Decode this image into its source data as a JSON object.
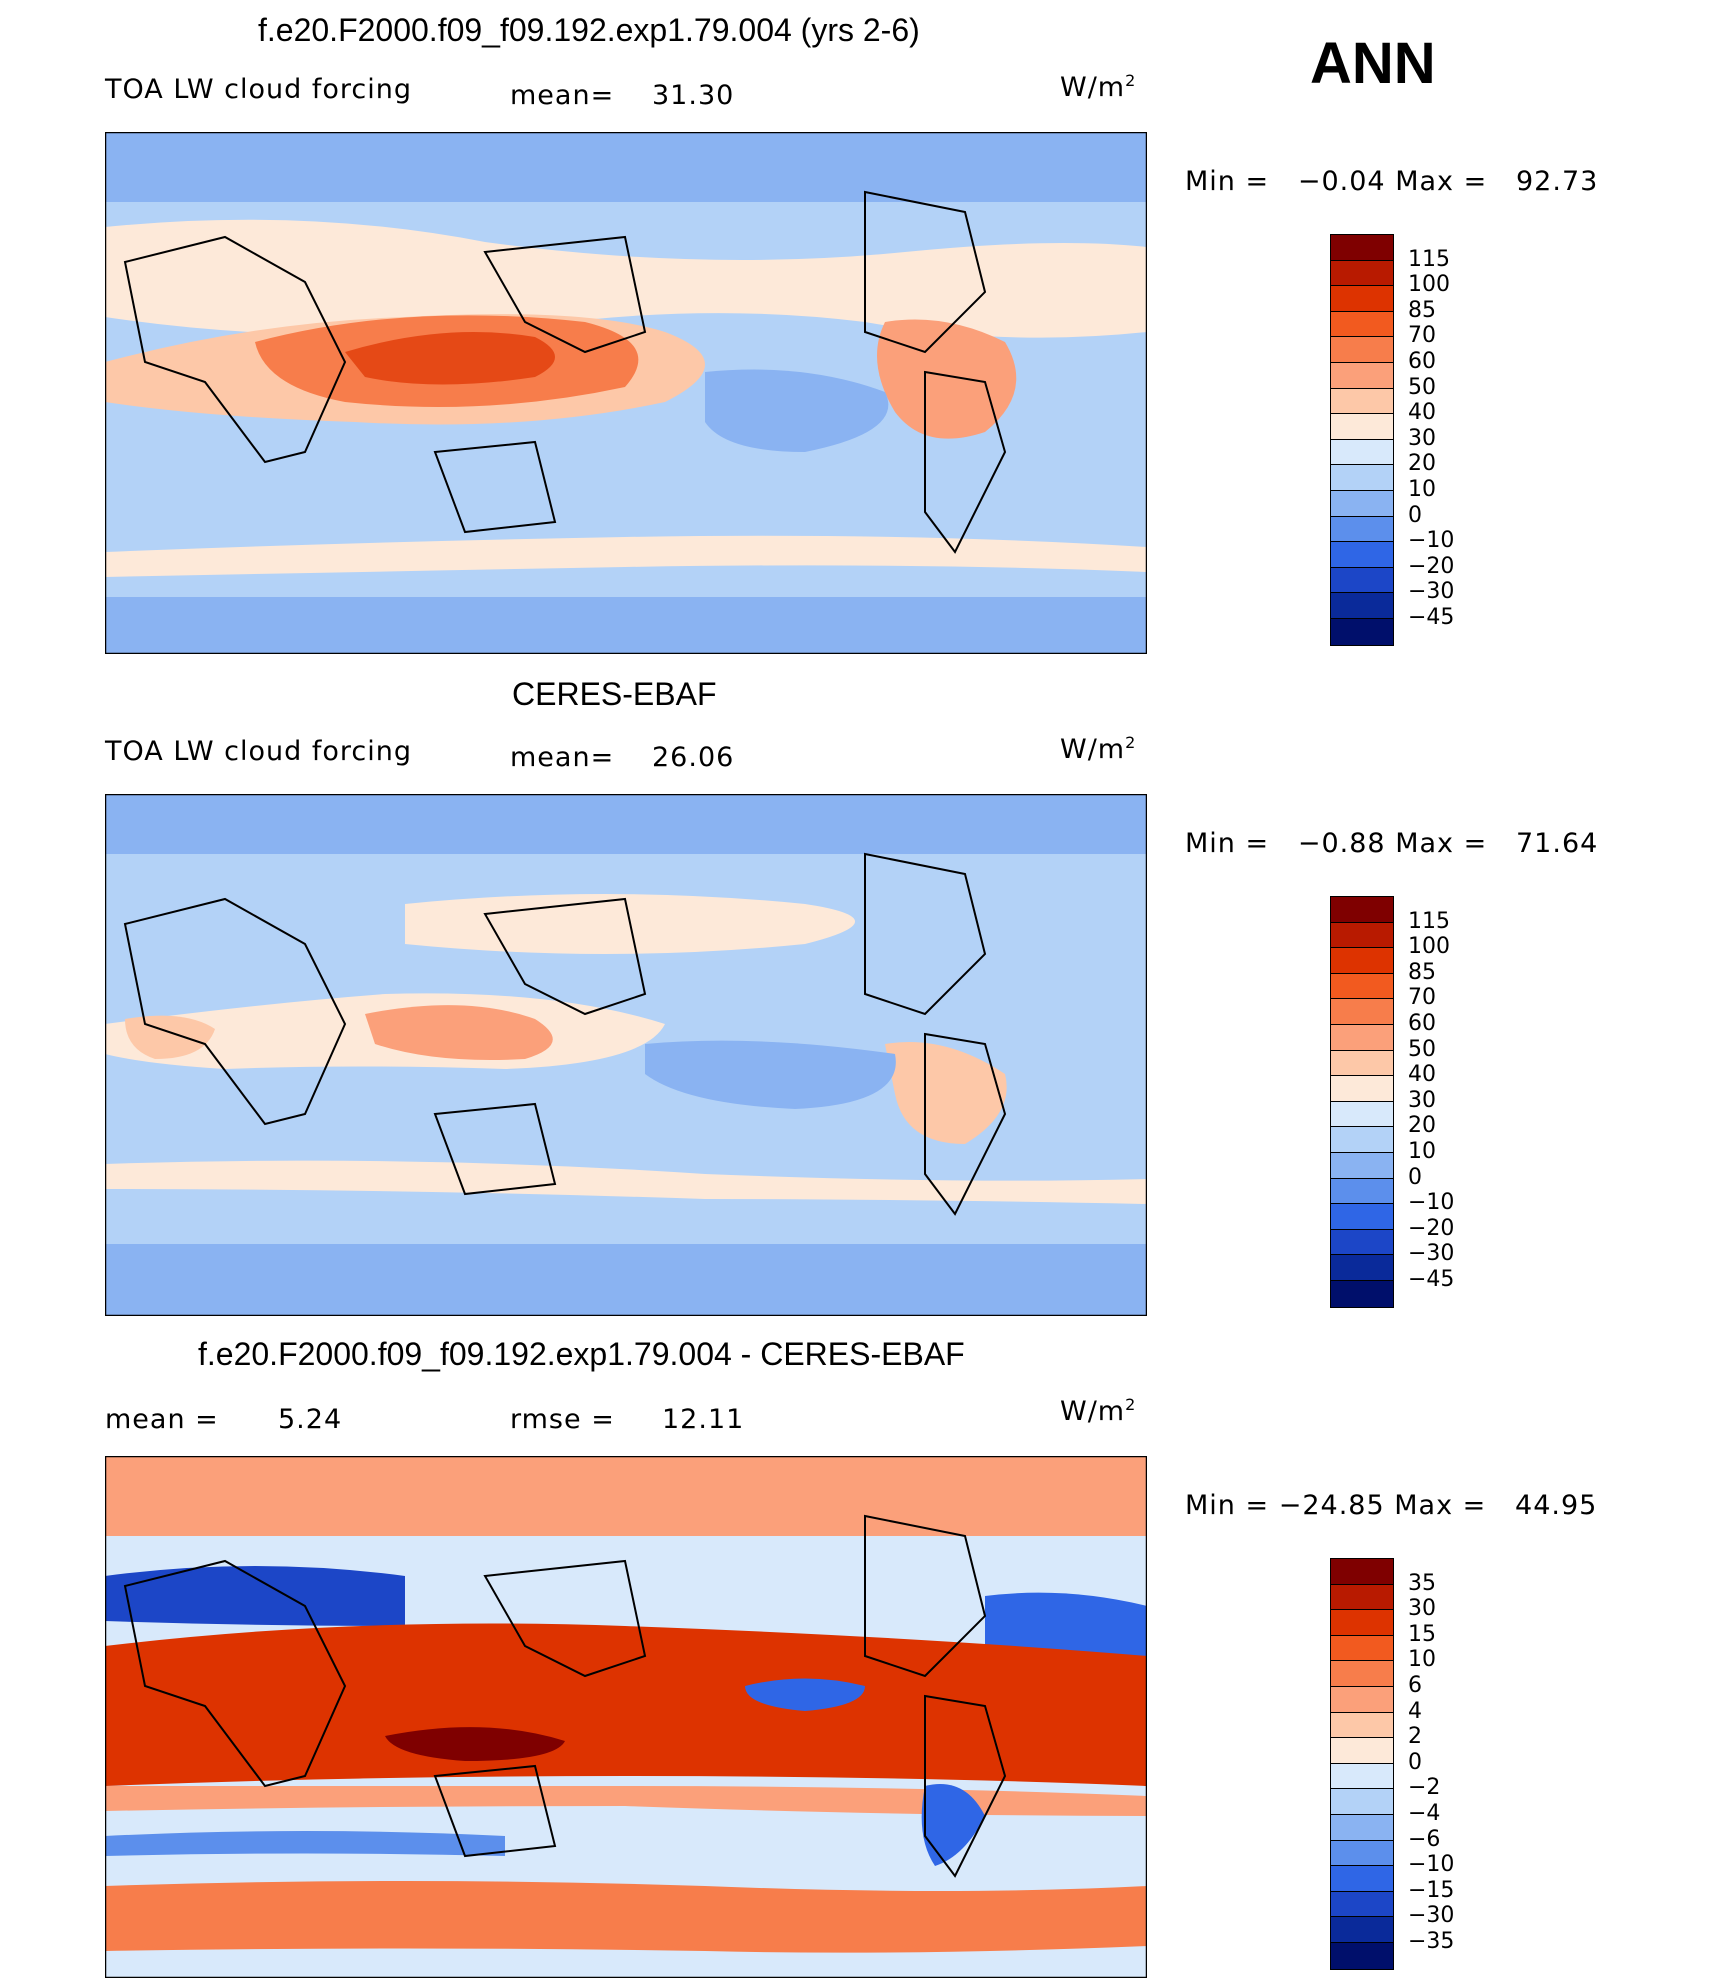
{
  "season": "ANN",
  "panels": [
    {
      "title": "f.e20.F2000.f09_f09.192.exp1.79.004 (yrs 2-6)",
      "variable": "TOA LW cloud forcing",
      "mean_label": "mean=",
      "mean_value": "31.30",
      "units": "W/m",
      "units_sup": "2",
      "min_label": "Min =",
      "min_value": "−0.04",
      "max_label": "Max =",
      "max_value": "92.73",
      "levels": [
        "115",
        "100",
        "85",
        "70",
        "60",
        "50",
        "40",
        "30",
        "20",
        "10",
        "0",
        "−10",
        "−20",
        "−30",
        "−45"
      ],
      "colors": [
        "#7f0000",
        "#b81a00",
        "#dd3300",
        "#f25a1f",
        "#f77d4b",
        "#fba07a",
        "#fdc8a8",
        "#fde9d9",
        "#d8e9fb",
        "#b3d2f7",
        "#8ab3f2",
        "#5c8fec",
        "#2f66e6",
        "#1c46c7",
        "#0a2a9a",
        "#000f6b"
      ]
    },
    {
      "title": "CERES-EBAF",
      "variable": "TOA LW cloud forcing",
      "mean_label": "mean=",
      "mean_value": "26.06",
      "units": "W/m",
      "units_sup": "2",
      "min_label": "Min =",
      "min_value": "−0.88",
      "max_label": "Max =",
      "max_value": "71.64",
      "levels": [
        "115",
        "100",
        "85",
        "70",
        "60",
        "50",
        "40",
        "30",
        "20",
        "10",
        "0",
        "−10",
        "−20",
        "−30",
        "−45"
      ],
      "colors": [
        "#7f0000",
        "#b81a00",
        "#dd3300",
        "#f25a1f",
        "#f77d4b",
        "#fba07a",
        "#fdc8a8",
        "#fde9d9",
        "#d8e9fb",
        "#b3d2f7",
        "#8ab3f2",
        "#5c8fec",
        "#2f66e6",
        "#1c46c7",
        "#0a2a9a",
        "#000f6b"
      ]
    },
    {
      "title": "f.e20.F2000.f09_f09.192.exp1.79.004 - CERES-EBAF",
      "mean_label": "mean =",
      "mean_value": "5.24",
      "rmse_label": "rmse =",
      "rmse_value": "12.11",
      "units": "W/m",
      "units_sup": "2",
      "min_label": "Min =",
      "min_value": "−24.85",
      "max_label": "Max =",
      "max_value": "44.95",
      "levels": [
        "35",
        "30",
        "15",
        "10",
        "6",
        "4",
        "2",
        "0",
        "−2",
        "−4",
        "−6",
        "−10",
        "−15",
        "−30",
        "−35"
      ],
      "colors": [
        "#7f0000",
        "#b81a00",
        "#dd3300",
        "#f25a1f",
        "#f77d4b",
        "#fba07a",
        "#fdc8a8",
        "#fde9d9",
        "#d8e9fb",
        "#b3d2f7",
        "#8ab3f2",
        "#5c8fec",
        "#2f66e6",
        "#1c46c7",
        "#0a2a9a",
        "#000f6b"
      ]
    }
  ]
}
